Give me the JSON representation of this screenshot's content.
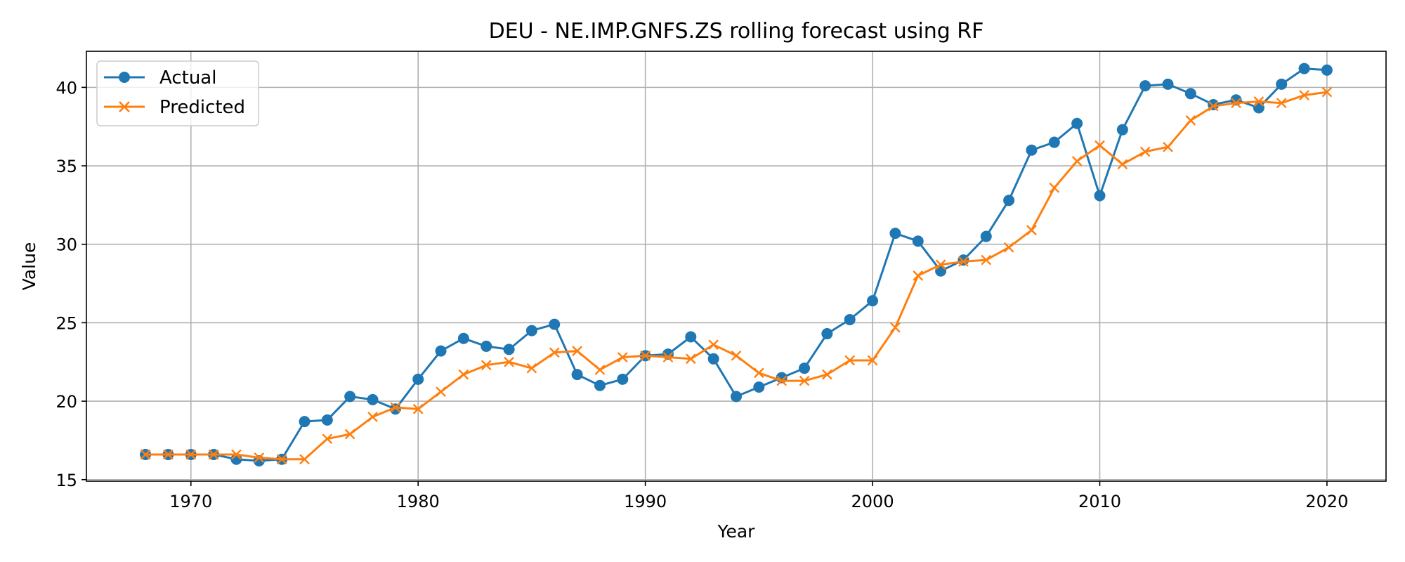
{
  "chart_data": {
    "type": "line",
    "title": "DEU - NE.IMP.GNFS.ZS rolling forecast using RF",
    "xlabel": "Year",
    "ylabel": "Value",
    "xlim": [
      1965.4,
      2022.6
    ],
    "ylim": [
      14.9,
      42.3
    ],
    "xticks": [
      1970,
      1980,
      1990,
      2000,
      2010,
      2020
    ],
    "yticks": [
      15,
      20,
      25,
      30,
      35,
      40
    ],
    "grid": true,
    "legend": "top-left",
    "x": [
      1968,
      1969,
      1970,
      1971,
      1972,
      1973,
      1974,
      1975,
      1976,
      1977,
      1978,
      1979,
      1980,
      1981,
      1982,
      1983,
      1984,
      1985,
      1986,
      1987,
      1988,
      1989,
      1990,
      1991,
      1992,
      1993,
      1994,
      1995,
      1996,
      1997,
      1998,
      1999,
      2000,
      2001,
      2002,
      2003,
      2004,
      2005,
      2006,
      2007,
      2008,
      2009,
      2010,
      2011,
      2012,
      2013,
      2014,
      2015,
      2016,
      2017,
      2018,
      2019,
      2020
    ],
    "series": [
      {
        "name": "Actual",
        "color": "#1f77b4",
        "marker": "circle",
        "values": [
          16.6,
          16.6,
          16.6,
          16.6,
          16.3,
          16.2,
          16.3,
          18.7,
          18.8,
          20.3,
          20.1,
          19.5,
          21.4,
          23.2,
          24.0,
          23.5,
          23.3,
          24.5,
          24.9,
          21.7,
          21.0,
          21.4,
          22.9,
          23.0,
          24.1,
          22.7,
          20.3,
          20.9,
          21.5,
          22.1,
          24.3,
          25.2,
          26.4,
          30.7,
          30.2,
          28.3,
          29.0,
          30.5,
          32.8,
          36.0,
          36.5,
          37.7,
          33.1,
          37.3,
          40.1,
          40.2,
          39.6,
          38.9,
          39.2,
          38.7,
          40.2,
          41.2,
          41.1
        ]
      },
      {
        "name": "Predicted",
        "color": "#ff7f0e",
        "marker": "x",
        "values": [
          16.6,
          16.6,
          16.6,
          16.6,
          16.6,
          16.4,
          16.3,
          16.3,
          17.6,
          17.9,
          19.0,
          19.6,
          19.5,
          20.6,
          21.7,
          22.3,
          22.5,
          22.1,
          23.1,
          23.2,
          22.0,
          22.8,
          22.9,
          22.8,
          22.7,
          23.6,
          22.9,
          21.8,
          21.3,
          21.3,
          21.7,
          22.6,
          22.6,
          24.7,
          28.0,
          28.7,
          28.9,
          29.0,
          29.8,
          30.9,
          33.6,
          35.3,
          36.3,
          35.1,
          35.9,
          36.2,
          37.9,
          38.8,
          39.0,
          39.1,
          39.0,
          39.5,
          39.7
        ]
      }
    ]
  }
}
